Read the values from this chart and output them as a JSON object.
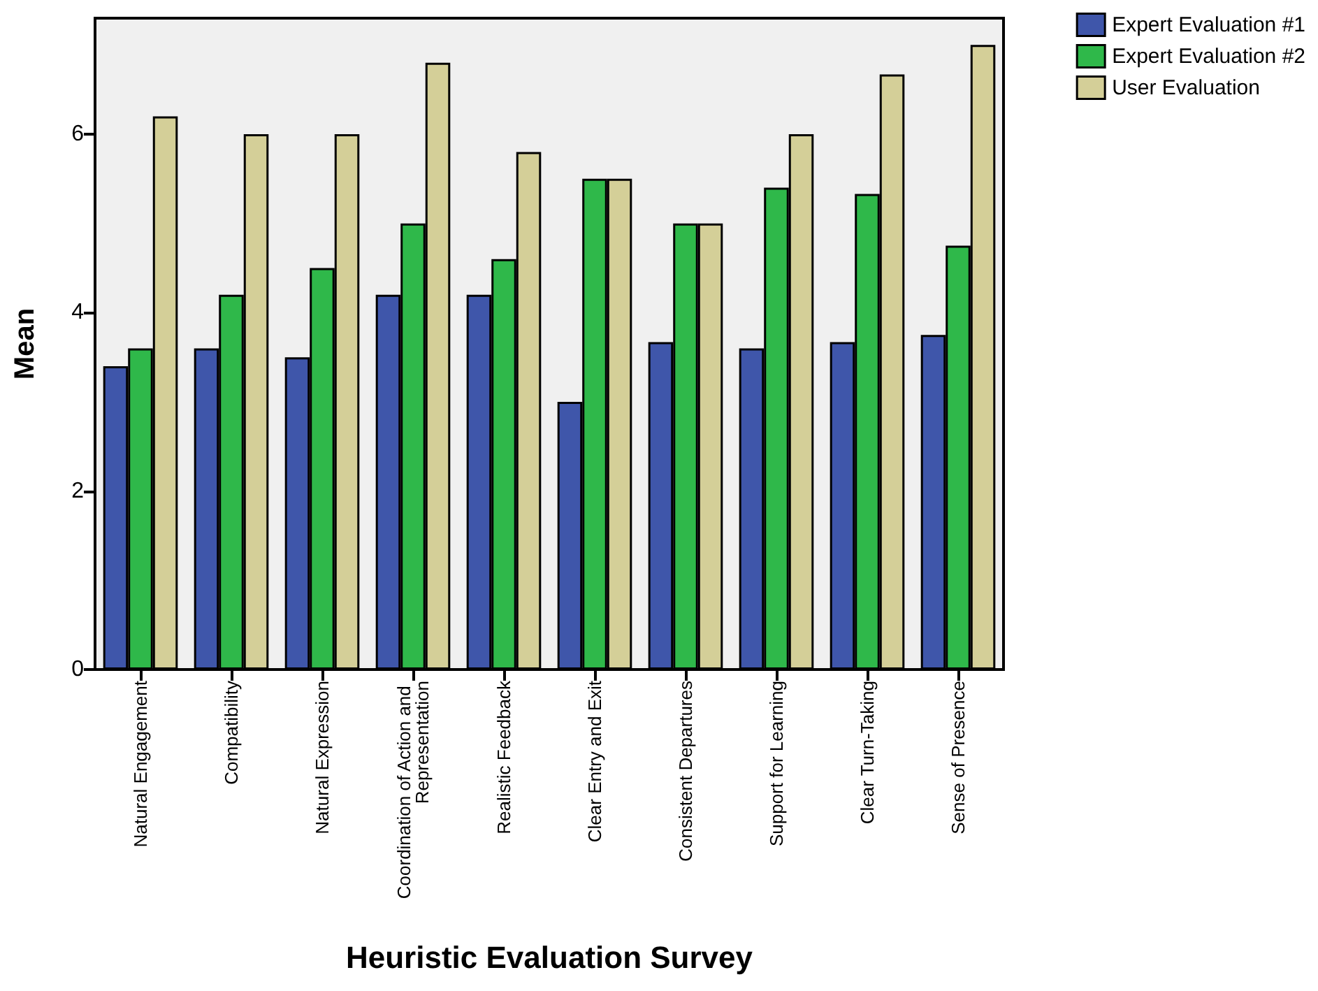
{
  "chart_data": {
    "type": "bar",
    "xlabel": "Heuristic Evaluation Survey",
    "ylabel": "Mean",
    "categories": [
      "Natural Engagement",
      "Compatibility",
      "Natural Expression",
      "Coordination of Action and Representation",
      "Realistic Feedback",
      "Clear Entry and Exit",
      "Consistent Departures",
      "Support for Learning",
      "Clear Turn-Taking",
      "Sense of Presence"
    ],
    "series": [
      {
        "name": "Expert Evaluation #1",
        "color": "#3f56aa",
        "values": [
          3.4,
          3.6,
          3.5,
          4.2,
          4.2,
          3.0,
          3.67,
          3.6,
          3.67,
          3.75
        ]
      },
      {
        "name": "Expert Evaluation #2",
        "color": "#2fb84a",
        "values": [
          3.6,
          4.2,
          4.5,
          5.0,
          4.6,
          5.5,
          5.0,
          5.4,
          5.33,
          4.75
        ]
      },
      {
        "name": "User Evaluation",
        "color": "#d4cf98",
        "values": [
          6.2,
          6.0,
          6.0,
          6.8,
          5.8,
          5.5,
          5.0,
          6.0,
          6.67,
          7.0
        ]
      }
    ],
    "ylim": [
      0,
      7.3
    ],
    "yticks": [
      0,
      2,
      4,
      6
    ],
    "grid": false,
    "legend": "top right"
  }
}
